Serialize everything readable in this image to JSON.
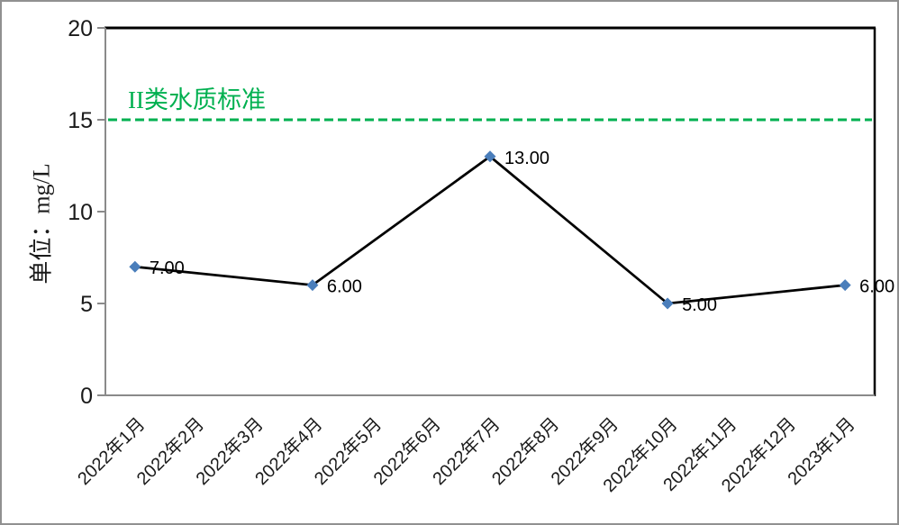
{
  "chart_data": {
    "type": "line",
    "title": "",
    "xlabel": "",
    "ylabel": "单位：mg/L",
    "ylim": [
      0,
      20
    ],
    "yticks": [
      0,
      5,
      10,
      15,
      20
    ],
    "grid": false,
    "legend": "none",
    "categories": [
      "2022年1月",
      "2022年2月",
      "2022年3月",
      "2022年4月",
      "2022年5月",
      "2022年6月",
      "2022年7月",
      "2022年8月",
      "2022年9月",
      "2022年10月",
      "2022年11月",
      "2022年12月",
      "2023年1月"
    ],
    "series": [
      {
        "points": [
          {
            "category": "2022年1月",
            "value": 7,
            "label": "7.00"
          },
          {
            "category": "2022年4月",
            "value": 6,
            "label": "6.00"
          },
          {
            "category": "2022年7月",
            "value": 13,
            "label": "13.00"
          },
          {
            "category": "2022年10月",
            "value": 5,
            "label": "5.00"
          },
          {
            "category": "2023年1月",
            "value": 6,
            "label": "6.00"
          }
        ],
        "line_color": "#000000",
        "marker": "diamond",
        "marker_color": "#4a7ebb"
      }
    ],
    "reference_line": {
      "value": 15,
      "label": "II类水质标准",
      "color": "#00b050",
      "style": "dashed"
    },
    "colors": {
      "axis_line": "#8a8a8a",
      "plot_border": "#000000",
      "tick_label": "#1a1a1a",
      "data_label": "#000000"
    }
  }
}
